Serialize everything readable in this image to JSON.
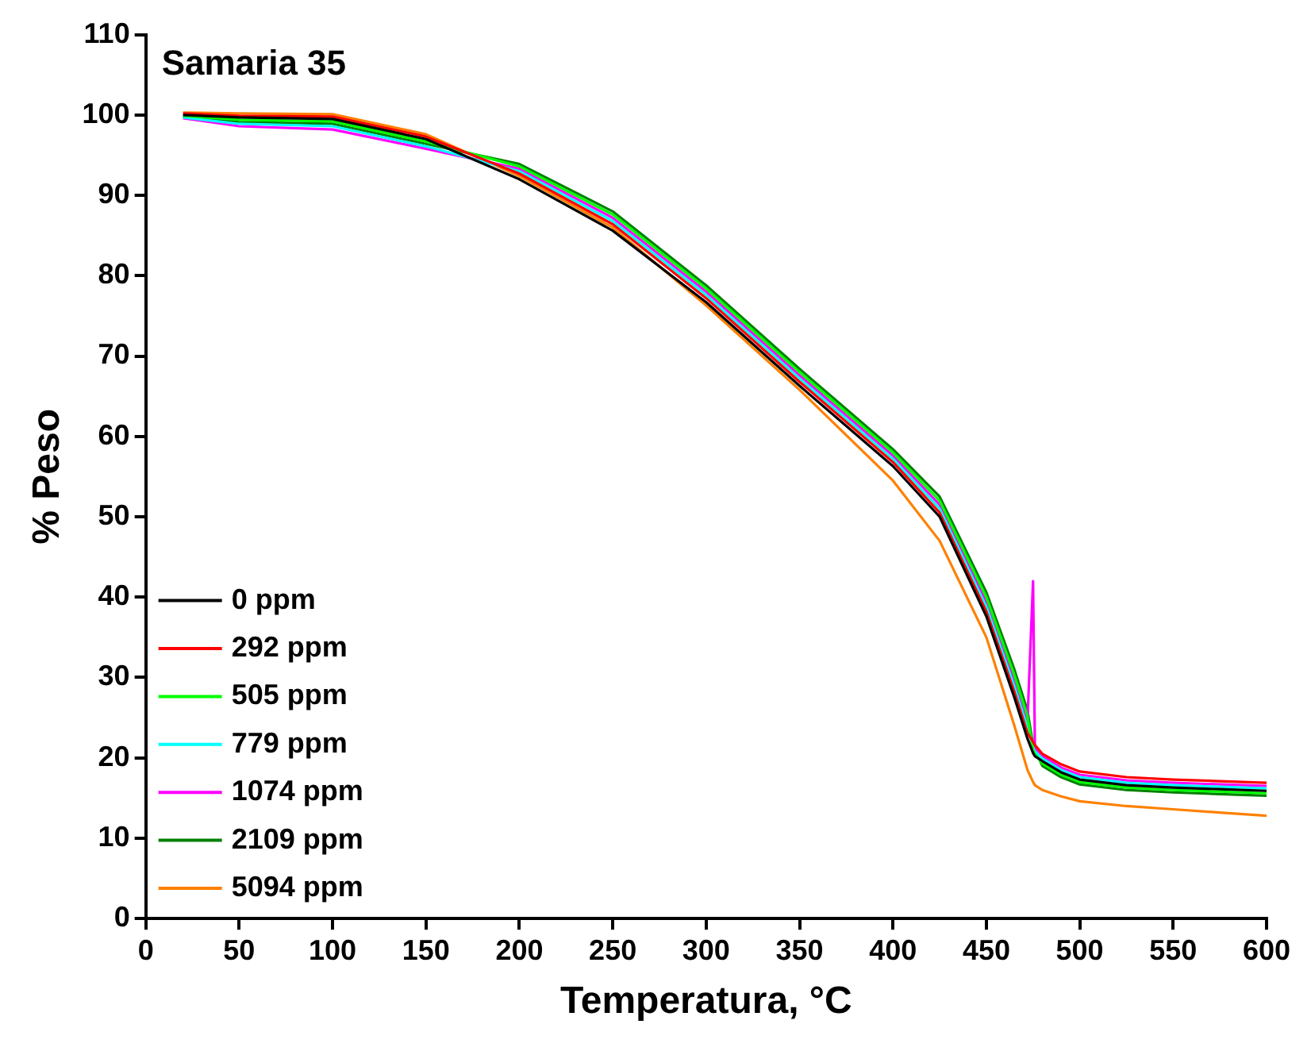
{
  "chart_data": {
    "type": "line",
    "title": "Samaria 35",
    "xlabel": "Temperatura, °C",
    "ylabel": "% Peso",
    "x": [
      20,
      50,
      100,
      150,
      200,
      250,
      300,
      350,
      400,
      425,
      450,
      465,
      472,
      475,
      476,
      480,
      490,
      500,
      525,
      550,
      575,
      600
    ],
    "series": [
      {
        "name": "0 ppm",
        "color": "#000000",
        "values": [
          100,
          99.7,
          99.5,
          97,
          92,
          85.6,
          76.7,
          66.3,
          56.3,
          50,
          37.6,
          27.5,
          22.4,
          20.6,
          20.2,
          19.6,
          18.2,
          17.3,
          16.6,
          16.3,
          16.1,
          15.9
        ]
      },
      {
        "name": "292 ppm",
        "color": "#ff0000",
        "values": [
          100.2,
          99.9,
          99.8,
          97.3,
          92.7,
          86.4,
          77.2,
          66.8,
          56.8,
          50.5,
          38.2,
          28.2,
          23.1,
          22,
          21.6,
          20.5,
          19.2,
          18.3,
          17.6,
          17.3,
          17.1,
          16.9
        ]
      },
      {
        "name": "505 ppm",
        "color": "#00ff00",
        "values": [
          99.9,
          99.4,
          99.2,
          96.7,
          93.6,
          87.6,
          78.4,
          68,
          58,
          52,
          40,
          30.3,
          25.2,
          21,
          20.5,
          19.3,
          17.9,
          17,
          16.3,
          16,
          15.8,
          15.6
        ]
      },
      {
        "name": "779 ppm",
        "color": "#00ffff",
        "values": [
          99.7,
          98.9,
          98.6,
          96.1,
          93,
          86.8,
          77.6,
          67.2,
          57.2,
          51,
          38.8,
          28.9,
          23.8,
          21.3,
          20.8,
          19.9,
          18.5,
          17.6,
          16.9,
          16.6,
          16.4,
          16.2
        ]
      },
      {
        "name": "1074 ppm",
        "color": "#ff00ff",
        "values": [
          99.6,
          98.6,
          98.2,
          95.8,
          93.3,
          87.2,
          78,
          67.6,
          57.6,
          51.5,
          39.4,
          29.6,
          24.5,
          42,
          21.2,
          20.2,
          18.8,
          17.9,
          17.2,
          16.9,
          16.7,
          16.5
        ]
      },
      {
        "name": "2109 ppm",
        "color": "#008000",
        "values": [
          99.8,
          99.1,
          98.9,
          96.4,
          93.9,
          88,
          78.8,
          68.4,
          58.4,
          52.5,
          40.6,
          31,
          25.9,
          21.6,
          21,
          19,
          17.6,
          16.7,
          16,
          15.7,
          15.5,
          15.3
        ]
      },
      {
        "name": "5094 ppm",
        "color": "#ff8000",
        "values": [
          100.3,
          100.2,
          100.1,
          97.6,
          92.4,
          86,
          76.3,
          65.8,
          54.5,
          47,
          35,
          24,
          18.5,
          17,
          16.6,
          16,
          15.2,
          14.6,
          14,
          13.6,
          13.2,
          12.8
        ]
      }
    ],
    "xlim": [
      0,
      600
    ],
    "xticks": [
      0,
      50,
      100,
      150,
      200,
      250,
      300,
      350,
      400,
      450,
      500,
      550,
      600
    ],
    "ylim": [
      0,
      110
    ],
    "yticks": [
      0,
      10,
      20,
      30,
      40,
      50,
      60,
      70,
      80,
      90,
      100,
      110
    ],
    "grid": false,
    "legend": "bottom left",
    "marker": "none",
    "line_style": "solid"
  }
}
